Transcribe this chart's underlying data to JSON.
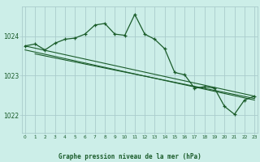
{
  "background_color": "#cceee8",
  "grid_color": "#aacccc",
  "line_color": "#1a5c2a",
  "text_color": "#1a5c2a",
  "xlabel": "Graphe pression niveau de la mer (hPa)",
  "x_ticks": [
    0,
    1,
    2,
    3,
    4,
    5,
    6,
    7,
    8,
    9,
    10,
    11,
    12,
    13,
    14,
    15,
    16,
    17,
    18,
    19,
    20,
    21,
    22,
    23
  ],
  "y_ticks": [
    1022,
    1023,
    1024
  ],
  "ylim": [
    1021.55,
    1024.75
  ],
  "xlim": [
    -0.3,
    23.3
  ],
  "line1_x": [
    0,
    1,
    2,
    3,
    4,
    5,
    6,
    7,
    8,
    9,
    10,
    11,
    12,
    13,
    14,
    15,
    16,
    17,
    18,
    19,
    20,
    21,
    22,
    23
  ],
  "line1_y": [
    1023.75,
    1023.8,
    1023.65,
    1023.82,
    1023.92,
    1023.95,
    1024.05,
    1024.28,
    1024.32,
    1024.05,
    1024.02,
    1024.55,
    1024.05,
    1023.92,
    1023.68,
    1023.08,
    1023.02,
    1022.68,
    1022.72,
    1022.68,
    1022.22,
    1022.02,
    1022.38,
    1022.48
  ],
  "trend1_x": [
    0,
    23
  ],
  "trend1_y": [
    1023.75,
    1022.48
  ],
  "trend2_x": [
    0,
    23
  ],
  "trend2_y": [
    1023.65,
    1022.38
  ],
  "trend3_x": [
    1,
    23
  ],
  "trend3_y": [
    1023.55,
    1022.42
  ]
}
